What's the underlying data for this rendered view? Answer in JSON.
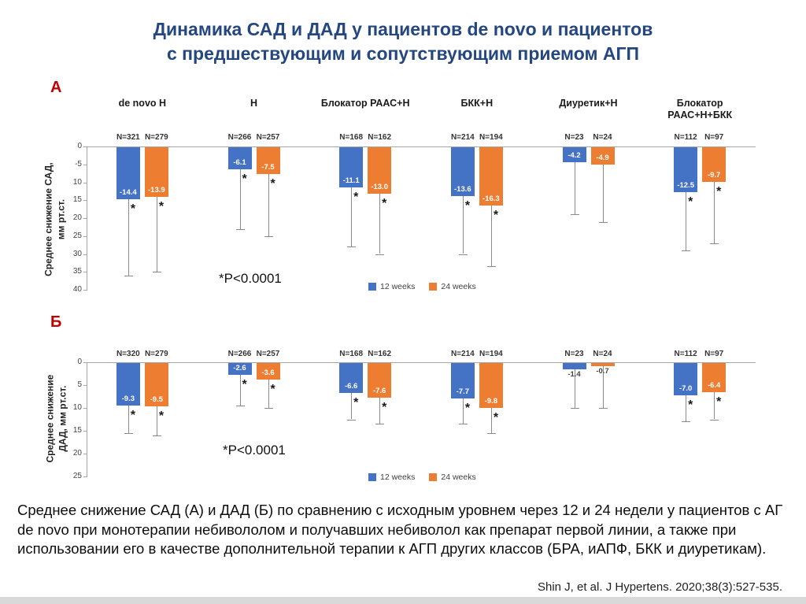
{
  "slide": {
    "title_line1": "Динамика САД и ДАД у пациентов de novo и пациентов",
    "title_line2": "с предшествующим и сопутствующим приемом АГП",
    "panel_a": "А",
    "panel_b": "Б",
    "caption": "Среднее снижение САД (А) и ДАД  (Б) по сравнению с исходным уровнем через 12 и 24 недели у пациентов с АГ de novo при монотерапии небивололом и получавших небиволол как препарат первой линии, а также при использовании его в качестве дополнительной терапии к  АГП других классов (БРА, иАПФ, БКК и диуретикам).",
    "citation": "Shin J, et al. J Hypertens. 2020;38(3):527-535."
  },
  "colors": {
    "title": "#24477F",
    "panel_label": "#C00000",
    "bar_12w": "#4472C4",
    "bar_24w": "#ED7D31",
    "axis_line": "#a6a6a6",
    "whisker": "#8a8a8a",
    "bar_value_label": "#ffffff",
    "text_dark": "#1a1a1a"
  },
  "chart_data": [
    {
      "type": "bar",
      "panel": "А",
      "ylabel_line1": "Среднее снижение САД,",
      "ylabel_line2": "мм рт.ст.",
      "note": "*P<0.0001",
      "ylim": [
        0,
        -40
      ],
      "ytick_labels": [
        "0",
        "-5",
        "10",
        "15",
        "20",
        "25",
        "30",
        "35",
        "40"
      ],
      "categories": [
        "de novo Н",
        "Н",
        "Блокатор РААС+Н",
        "БКК+Н",
        "Диуретик+Н",
        "Блокатор\nРААС+Н+БКК"
      ],
      "n_labels": [
        [
          "N=321",
          "N=279"
        ],
        [
          "N=266",
          "N=257"
        ],
        [
          "N=168",
          "N=162"
        ],
        [
          "N=214",
          "N=194"
        ],
        [
          "N=23",
          "N=24"
        ],
        [
          "N=112",
          "N=97"
        ]
      ],
      "legend": [
        "12 weeks",
        "24 weeks"
      ],
      "series": [
        {
          "name": "12 weeks",
          "values": [
            -14.4,
            -6.1,
            -11.1,
            -13.6,
            -4.2,
            -12.5
          ],
          "whisker_to": [
            36,
            23,
            28,
            30,
            19,
            29
          ],
          "sig": [
            true,
            true,
            true,
            true,
            false,
            true
          ]
        },
        {
          "name": "24 weeks",
          "values": [
            -13.9,
            -7.5,
            -13.0,
            -16.3,
            -4.9,
            -9.7
          ],
          "whisker_to": [
            35,
            25,
            30,
            33.5,
            21,
            27
          ],
          "sig": [
            true,
            true,
            true,
            true,
            false,
            true
          ]
        }
      ]
    },
    {
      "type": "bar",
      "panel": "Б",
      "ylabel_line1": "Среднее снижение",
      "ylabel_line2": "ДАД, мм рт.ст.",
      "note": "*P<0.0001",
      "ylim": [
        0,
        -25
      ],
      "ytick_labels": [
        "0",
        "5",
        "10",
        "15",
        "20",
        "25"
      ],
      "categories": [
        "",
        "",
        "",
        "",
        "",
        ""
      ],
      "n_labels": [
        [
          "N=320",
          "N=279"
        ],
        [
          "N=266",
          "N=257"
        ],
        [
          "N=168",
          "N=162"
        ],
        [
          "N=214",
          "N=194"
        ],
        [
          "N=23",
          "N=24"
        ],
        [
          "N=112",
          "N=97"
        ]
      ],
      "legend": [
        "12 weeks",
        "24 weeks"
      ],
      "series": [
        {
          "name": "12 weeks",
          "values": [
            -9.3,
            -2.6,
            -6.6,
            -7.7,
            -1.4,
            -7.0
          ],
          "whisker_to": [
            15.5,
            9.5,
            12.5,
            13.5,
            10,
            13
          ],
          "sig": [
            true,
            true,
            true,
            true,
            false,
            true
          ]
        },
        {
          "name": "24 weeks",
          "values": [
            -9.5,
            -3.6,
            -7.6,
            -9.8,
            -0.7,
            -6.4
          ],
          "whisker_to": [
            16,
            10,
            13.5,
            15.5,
            10,
            12.5
          ],
          "sig": [
            true,
            true,
            true,
            true,
            false,
            true
          ]
        }
      ]
    }
  ]
}
